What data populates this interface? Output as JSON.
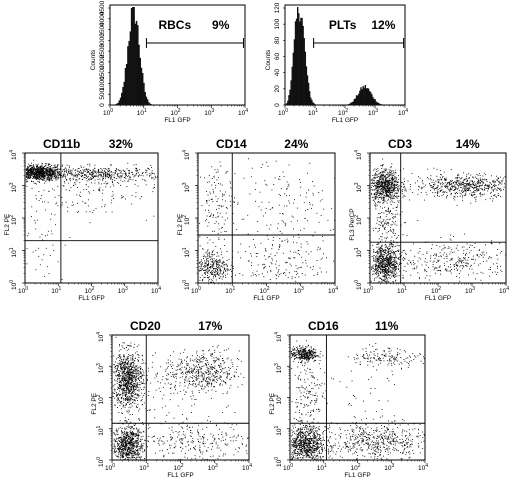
{
  "figure": {
    "panels": [
      {
        "id": "rbc",
        "title": "RBCs",
        "pct": "9%",
        "type": "hist",
        "xlabel": "FL1 GFP",
        "ylabel": "Counts",
        "yticks": [
          "0",
          "500",
          "1000",
          "1500",
          "2000",
          "2500",
          "3000",
          "3500",
          "4000",
          "4500"
        ],
        "ylim": [
          0,
          4500
        ]
      },
      {
        "id": "plt",
        "title": "PLTs",
        "pct": "12%",
        "type": "hist",
        "xlabel": "FL1 GFP",
        "ylabel": "Counts",
        "yticks": [
          "0",
          "20",
          "40",
          "60",
          "80",
          "100",
          "120"
        ],
        "ylim": [
          0,
          120
        ]
      },
      {
        "id": "cd11b",
        "title": "CD11b",
        "pct": "32%",
        "type": "dot",
        "xlabel": "FL1 GFP",
        "ylabel": "FL2 PE"
      },
      {
        "id": "cd14",
        "title": "CD14",
        "pct": "24%",
        "type": "dot",
        "xlabel": "FL1 GFP",
        "ylabel": "FL2 PE"
      },
      {
        "id": "cd3",
        "title": "CD3",
        "pct": "14%",
        "type": "dot",
        "xlabel": "FL1 GFP",
        "ylabel": "FL3 PerCP"
      },
      {
        "id": "cd20",
        "title": "CD20",
        "pct": "17%",
        "type": "dot",
        "xlabel": "FL1 GFP",
        "ylabel": "FL2 PE"
      },
      {
        "id": "cd16",
        "title": "CD16",
        "pct": "11%",
        "type": "dot",
        "xlabel": "FL1 GFP",
        "ylabel": "FL2 PE"
      }
    ]
  },
  "log_ticks": {
    "base": "10",
    "exponents": [
      "0",
      "1",
      "2",
      "3",
      "4"
    ]
  },
  "chart_data": [
    {
      "type": "histogram",
      "title": "RBCs",
      "annotation": "9%",
      "xlabel": "FL1 GFP",
      "ylabel": "Counts",
      "x_scale": "log",
      "xlim": [
        1,
        10000
      ],
      "ylim": [
        0,
        4500
      ],
      "peaks": [
        {
          "center": 5,
          "height": 4300
        }
      ],
      "gate": {
        "x_start": 12,
        "x_end": 9000,
        "percent": 9
      }
    },
    {
      "type": "histogram",
      "title": "PLTs",
      "annotation": "12%",
      "xlabel": "FL1 GFP",
      "ylabel": "Counts",
      "x_scale": "log",
      "xlim": [
        1,
        10000
      ],
      "ylim": [
        0,
        120
      ],
      "peaks": [
        {
          "center": 3,
          "height": 118
        },
        {
          "center": 450,
          "height": 22
        }
      ],
      "gate": {
        "x_start": 9,
        "x_end": 9000,
        "percent": 12
      }
    },
    {
      "type": "scatter",
      "title": "CD11b",
      "annotation": "32%",
      "xlabel": "FL1 GFP",
      "ylabel": "FL2 PE",
      "x_scale": "log",
      "y_scale": "log",
      "xlim": [
        1,
        10000
      ],
      "ylim": [
        1,
        10000
      ],
      "quadrant_x": 12,
      "quadrant_y": 20
    },
    {
      "type": "scatter",
      "title": "CD14",
      "annotation": "24%",
      "xlabel": "FL1 GFP",
      "ylabel": "FL2 PE",
      "x_scale": "log",
      "y_scale": "log",
      "xlim": [
        1,
        10000
      ],
      "ylim": [
        1,
        10000
      ],
      "quadrant_x": 10,
      "quadrant_y": 30
    },
    {
      "type": "scatter",
      "title": "CD3",
      "annotation": "14%",
      "xlabel": "FL1 GFP",
      "ylabel": "FL3 PerCP",
      "x_scale": "log",
      "y_scale": "log",
      "xlim": [
        1,
        10000
      ],
      "ylim": [
        1,
        10000
      ],
      "quadrant_x": 8,
      "quadrant_y": 18
    },
    {
      "type": "scatter",
      "title": "CD20",
      "annotation": "17%",
      "xlabel": "FL1 GFP",
      "ylabel": "FL2 PE",
      "x_scale": "log",
      "y_scale": "log",
      "xlim": [
        1,
        10000
      ],
      "ylim": [
        1,
        10000
      ],
      "quadrant_x": 10,
      "quadrant_y": 15
    },
    {
      "type": "scatter",
      "title": "CD16",
      "annotation": "11%",
      "xlabel": "FL1 GFP",
      "ylabel": "FL2 PE",
      "x_scale": "log",
      "y_scale": "log",
      "xlim": [
        1,
        10000
      ],
      "ylim": [
        1,
        10000
      ],
      "quadrant_x": 12,
      "quadrant_y": 15
    }
  ]
}
